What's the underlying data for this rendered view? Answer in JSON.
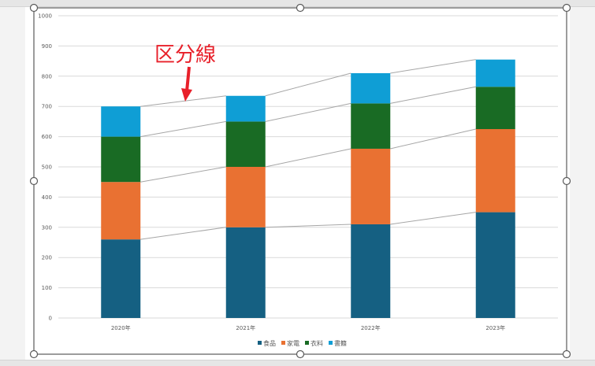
{
  "chart_data": {
    "type": "bar",
    "stacked": true,
    "title": "",
    "xlabel": "",
    "ylabel": "",
    "ylim": [
      0,
      1000
    ],
    "yticks": [
      0,
      100,
      200,
      300,
      400,
      500,
      600,
      700,
      800,
      900,
      1000
    ],
    "grid": true,
    "legend_position": "bottom",
    "categories": [
      "2020年",
      "2021年",
      "2022年",
      "2023年"
    ],
    "series": [
      {
        "name": "食品",
        "color": "#156082",
        "values": [
          260,
          300,
          310,
          350
        ]
      },
      {
        "name": "家電",
        "color": "#e97132",
        "values": [
          190,
          200,
          250,
          275
        ]
      },
      {
        "name": "衣料",
        "color": "#196b24",
        "values": [
          150,
          150,
          150,
          140
        ]
      },
      {
        "name": "書籍",
        "color": "#0f9ed5",
        "values": [
          100,
          85,
          100,
          90
        ]
      }
    ],
    "series_lines": true,
    "annotations": [
      {
        "text": "区分線",
        "color": "#e8202a",
        "type": "arrow-callout",
        "target": "series line between 2020年 and 2021年 (top)"
      }
    ]
  },
  "legend": {
    "items": [
      {
        "label": "食品",
        "color": "#156082"
      },
      {
        "label": "家電",
        "color": "#e97132"
      },
      {
        "label": "衣料",
        "color": "#196b24"
      },
      {
        "label": "書籍",
        "color": "#0f9ed5"
      }
    ]
  },
  "annotation": {
    "text": "区分線",
    "color": "#e8202a"
  },
  "yaxis": {
    "labels": [
      "0",
      "100",
      "200",
      "300",
      "400",
      "500",
      "600",
      "700",
      "800",
      "900",
      "1000"
    ]
  },
  "xaxis": {
    "labels": [
      "2020年",
      "2021年",
      "2022年",
      "2023年"
    ]
  }
}
